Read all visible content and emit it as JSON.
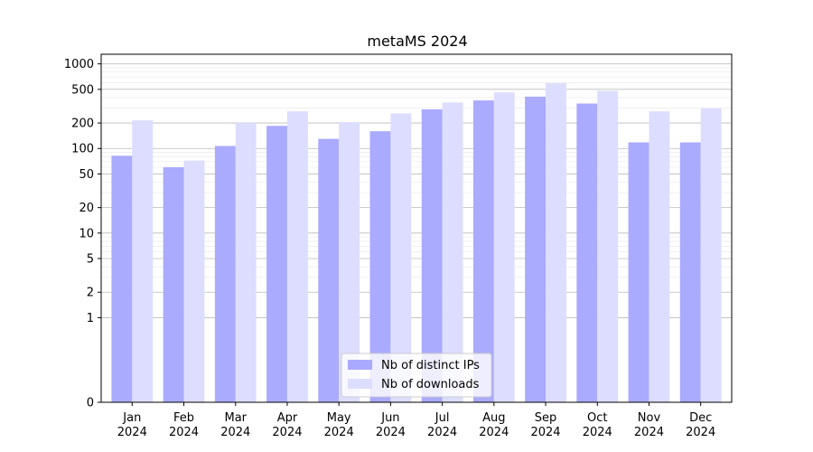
{
  "chart_data": {
    "type": "bar",
    "title": "metaMS 2024",
    "categories": [
      [
        "Jan",
        "2024"
      ],
      [
        "Feb",
        "2024"
      ],
      [
        "Mar",
        "2024"
      ],
      [
        "Apr",
        "2024"
      ],
      [
        "May",
        "2024"
      ],
      [
        "Jun",
        "2024"
      ],
      [
        "Jul",
        "2024"
      ],
      [
        "Aug",
        "2024"
      ],
      [
        "Sep",
        "2024"
      ],
      [
        "Oct",
        "2024"
      ],
      [
        "Nov",
        "2024"
      ],
      [
        "Dec",
        "2024"
      ]
    ],
    "series": [
      {
        "name": "Nb of distinct IPs",
        "color": "#aaaaff",
        "values": [
          82,
          60,
          107,
          185,
          130,
          160,
          290,
          370,
          410,
          340,
          118,
          118
        ]
      },
      {
        "name": "Nb of downloads",
        "color": "#ddddff",
        "values": [
          215,
          72,
          200,
          275,
          205,
          260,
          350,
          460,
          590,
          480,
          275,
          300
        ]
      }
    ],
    "y_scale": "symlog",
    "yticks": [
      0,
      1,
      2,
      5,
      10,
      20,
      50,
      100,
      200,
      500,
      1000
    ],
    "ytick_labels": [
      "0",
      "1",
      "2",
      "5",
      "10",
      "20",
      "50",
      "100",
      "200",
      "500",
      "1000"
    ],
    "ylim": [
      0,
      1300
    ],
    "grid": true,
    "legend_position": "lower-center"
  }
}
